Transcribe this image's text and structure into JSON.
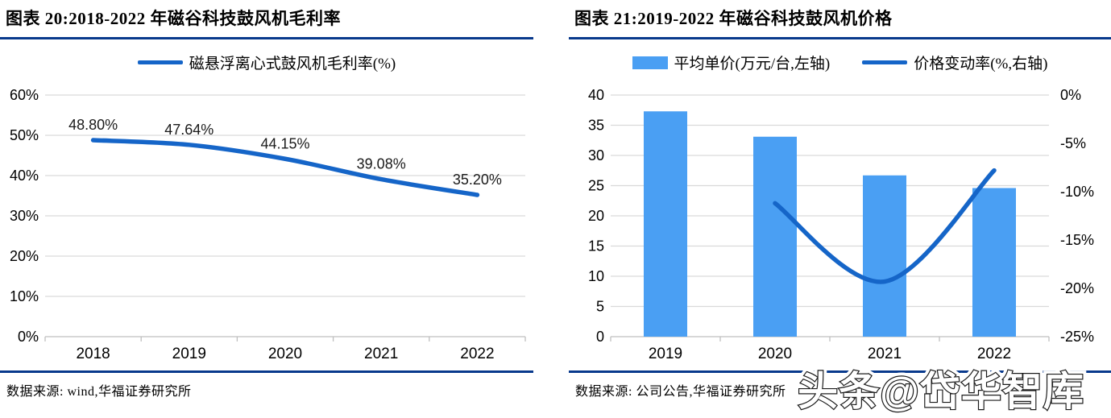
{
  "watermark": {
    "text": "头条@岱华智库"
  },
  "style": {
    "rule_color": "#08398C",
    "grid_color": "#D9D9D9",
    "axis_color": "#BFBFBF"
  },
  "left": {
    "title": "图表 20:2018-2022 年磁谷科技鼓风机毛利率",
    "legend": [
      {
        "type": "line",
        "label": "磁悬浮离心式鼓风机毛利率(%)"
      }
    ],
    "source": "数据来源: wind,华福证券研究所",
    "chart_data": {
      "type": "line",
      "title": "2018-2022 年磁谷科技鼓风机毛利率",
      "categories": [
        "2018",
        "2019",
        "2020",
        "2021",
        "2022"
      ],
      "series": [
        {
          "name": "磁悬浮离心式鼓风机毛利率(%)",
          "values": [
            48.8,
            47.64,
            44.15,
            39.08,
            35.2
          ]
        }
      ],
      "data_labels": [
        "48.80%",
        "47.64%",
        "44.15%",
        "39.08%",
        "35.20%"
      ],
      "ylim": [
        0,
        60
      ],
      "yticks": [
        "0%",
        "10%",
        "20%",
        "30%",
        "40%",
        "50%",
        "60%"
      ],
      "grid": true,
      "legend_position": "top",
      "line_color": "#1565C8",
      "smooth": true
    }
  },
  "right": {
    "title": "图表 21:2019-2022 年磁谷科技鼓风机价格",
    "legend": [
      {
        "type": "bar",
        "label": "平均单价(万元/台,左轴)"
      },
      {
        "type": "line",
        "label": "价格变动率(%,右轴)"
      }
    ],
    "source": "数据来源: 公司公告,华福证券研究所",
    "chart_data": {
      "type": "bar+line",
      "title": "2019-2022 年磁谷科技鼓风机价格",
      "categories": [
        "2019",
        "2020",
        "2021",
        "2022"
      ],
      "series": [
        {
          "name": "平均单价(万元/台,左轴)",
          "type": "bar",
          "axis": "left",
          "values": [
            37.3,
            33.1,
            26.7,
            24.6
          ]
        },
        {
          "name": "价格变动率(%,右轴)",
          "type": "line",
          "axis": "right",
          "values": [
            null,
            -11.2,
            -19.3,
            -7.8
          ]
        }
      ],
      "left_ylim": [
        0,
        40
      ],
      "left_yticks": [
        "0",
        "5",
        "10",
        "15",
        "20",
        "25",
        "30",
        "35",
        "40"
      ],
      "right_ylim": [
        -25,
        0
      ],
      "right_yticks": [
        "0%",
        "-5%",
        "-10%",
        "-15%",
        "-20%",
        "-25%"
      ],
      "grid": true,
      "legend_position": "top",
      "bar_color": "#4A9FF3",
      "line_color": "#1565C8",
      "smooth": true
    }
  }
}
